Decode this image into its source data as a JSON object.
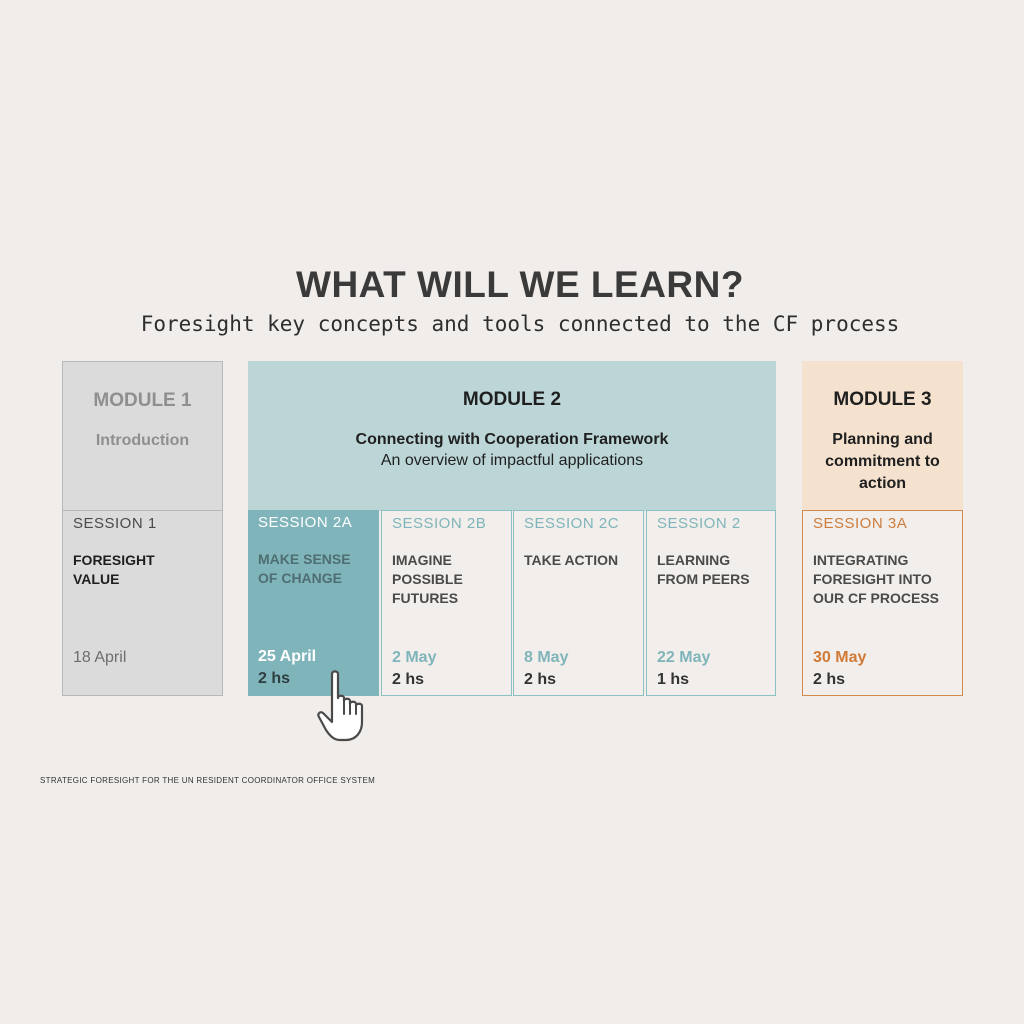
{
  "title": "WHAT WILL WE LEARN?",
  "subtitle": "Foresight key concepts and tools connected to the CF process",
  "modules": [
    {
      "title": "MODULE 1",
      "subtitle": "Introduction",
      "description": ""
    },
    {
      "title": "MODULE 2",
      "subtitle": "Connecting with Cooperation Framework",
      "description": "An overview of impactful applications"
    },
    {
      "title": "MODULE 3",
      "subtitle": "Planning and commitment to action",
      "description": ""
    }
  ],
  "sessions": [
    {
      "label": "SESSION 1",
      "desc_lines": [
        "FORESIGHT",
        "VALUE"
      ],
      "date": "18 April",
      "duration": ""
    },
    {
      "label": "SESSION 2A",
      "desc_lines": [
        "MAKE SENSE",
        "OF CHANGE"
      ],
      "date": "25 April",
      "duration": "2 hs"
    },
    {
      "label": "SESSION 2B",
      "desc_lines": [
        "IMAGINE",
        "POSSIBLE",
        "FUTURES"
      ],
      "date": "2 May",
      "duration": "2 hs"
    },
    {
      "label": "SESSION 2C",
      "desc_lines": [
        "TAKE ACTION"
      ],
      "date": "8 May",
      "duration": "2 hs"
    },
    {
      "label": "SESSION 2",
      "desc_lines": [
        "LEARNING",
        "FROM PEERS"
      ],
      "date": "22 May",
      "duration": "1 hs"
    },
    {
      "label": "SESSION 3A",
      "desc_lines": [
        "INTEGRATING",
        "FORESIGHT INTO",
        "OUR CF PROCESS"
      ],
      "date": "30 May",
      "duration": "2 hs"
    }
  ],
  "footer": "STRATEGIC FORESIGHT FOR THE UN RESIDENT COORDINATOR OFFICE SYSTEM",
  "colors": {
    "module1": "#dbdbdb",
    "module2": "#bcd6d7",
    "module3": "#f4e2cf",
    "teal_accent": "#7fb5ba",
    "orange_accent": "#d07a35"
  },
  "icons": {
    "cursor": "hand-pointer-icon"
  }
}
